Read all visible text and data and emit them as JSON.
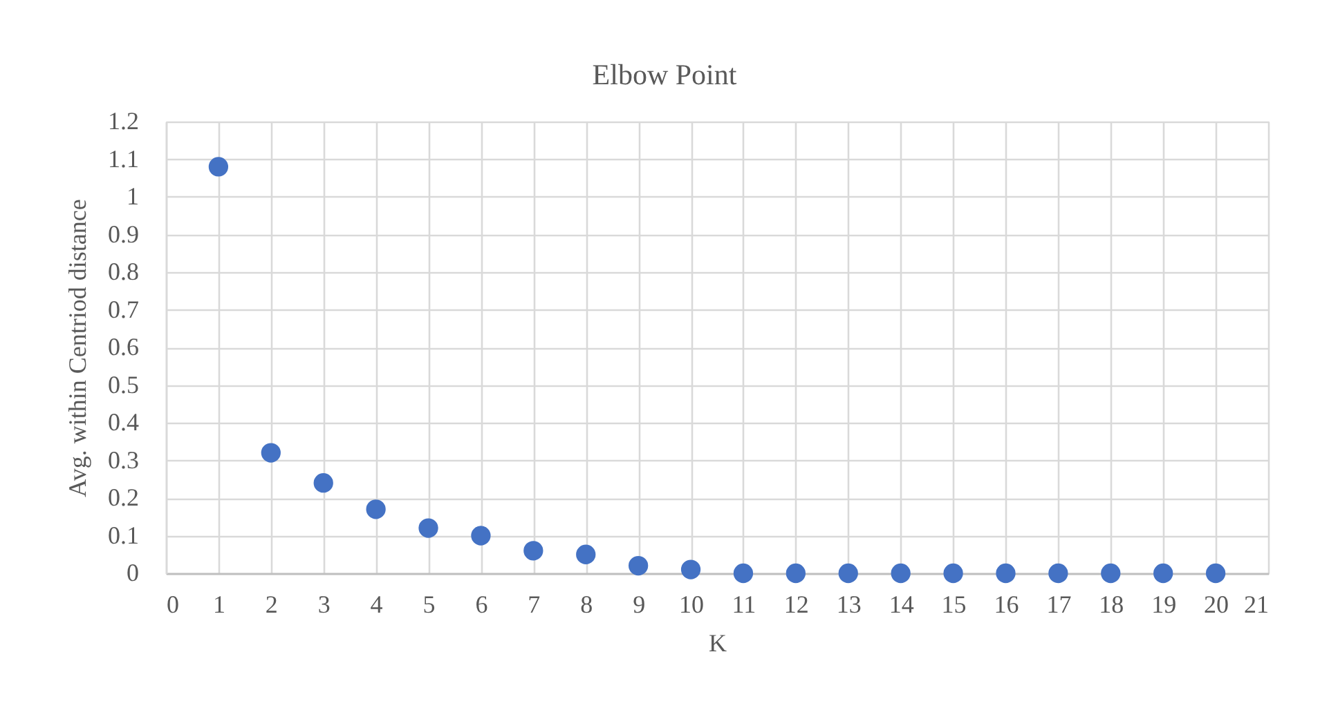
{
  "chart_data": {
    "type": "scatter",
    "title": "Elbow Point",
    "xlabel": "K",
    "ylabel": "Avg.  within Centriod distance",
    "x": [
      1,
      2,
      3,
      4,
      5,
      6,
      7,
      8,
      9,
      10,
      11,
      12,
      13,
      14,
      15,
      16,
      17,
      18,
      19,
      20
    ],
    "series": [
      {
        "color": "#4472c4",
        "values": [
          1.08,
          0.32,
          0.24,
          0.17,
          0.12,
          0.1,
          0.06,
          0.05,
          0.02,
          0.01,
          0,
          0,
          0,
          0,
          0,
          0,
          0,
          0,
          0,
          0
        ]
      }
    ],
    "xlim": [
      0,
      21
    ],
    "xticks": [
      0,
      1,
      2,
      3,
      4,
      5,
      6,
      7,
      8,
      9,
      10,
      11,
      12,
      13,
      14,
      15,
      16,
      17,
      18,
      19,
      20,
      21
    ],
    "ylim": [
      0,
      1.2
    ],
    "yticks": [
      0,
      0.1,
      0.2,
      0.3,
      0.4,
      0.5,
      0.6,
      0.7,
      0.8,
      0.9,
      1,
      1.1,
      1.2
    ],
    "grid": true,
    "marker": "circle"
  }
}
